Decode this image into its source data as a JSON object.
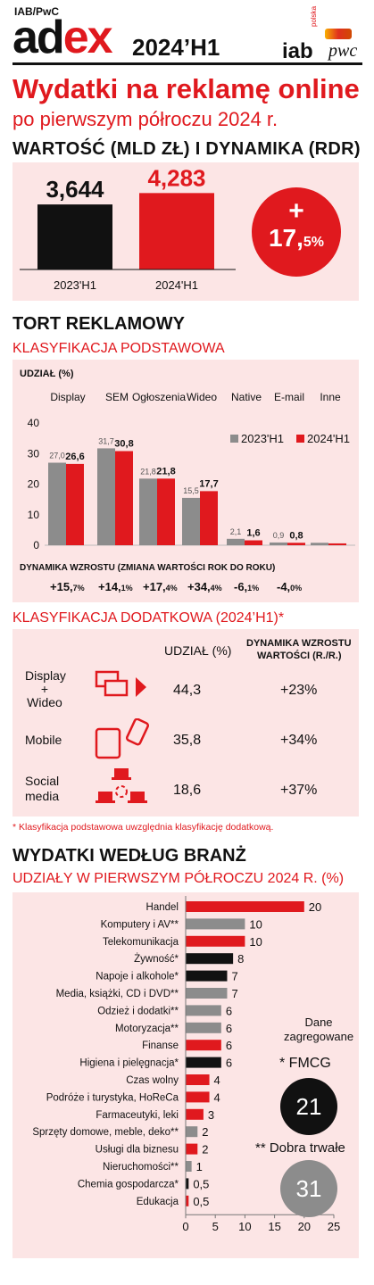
{
  "header": {
    "publisher": "IAB/PwC",
    "logo_ad": "ad",
    "logo_ex": "ex",
    "edition": "2024’H1",
    "logo_iab": "iab",
    "logo_iab_sub": "polska",
    "logo_pwc": "pwc"
  },
  "title_line1": "Wydatki na reklamę online",
  "title_line2": "po pierwszym półroczu 2024 r.",
  "value_section": {
    "title": "WARTOŚĆ (MLD ZŁ) I DYNAMIKA (RDR)",
    "growth_plus": "+",
    "growth_value": "17,",
    "growth_sup": "5%"
  },
  "pie_section": {
    "title": "TORT REKLAMOWY",
    "subtitle": "KLASYFIKACJA PODSTAWOWA",
    "share_label": "UDZIAŁ (%)",
    "dynamics_title": "DYNAMIKA WZROSTU (ZMIANA WARTOŚCI ROK DO ROKU)",
    "dynamics": [
      {
        "int": "+15,",
        "dec": "7%"
      },
      {
        "int": "+14,",
        "dec": "1%"
      },
      {
        "int": "+17,",
        "dec": "4%"
      },
      {
        "int": "+34,",
        "dec": "4%"
      },
      {
        "int": "-6,",
        "dec": "1%"
      },
      {
        "int": "-4,",
        "dec": "0%"
      }
    ]
  },
  "extra_section": {
    "subtitle": "KLASYFIKACJA DODATKOWA (2024’H1)*",
    "col_share": "UDZIAŁ (%)",
    "col_dyn_1": "DYNAMIKA WZROSTU",
    "col_dyn_2": "WARTOŚCI (R./R.)",
    "rows": [
      {
        "name1": "Display",
        "name2": "+",
        "name3": "Wideo",
        "share": "44,3",
        "dyn": "+23%"
      },
      {
        "name1": "Mobile",
        "name2": "",
        "name3": "",
        "share": "35,8",
        "dyn": "+34%"
      },
      {
        "name1": "Social",
        "name2": "media",
        "name3": "",
        "share": "18,6",
        "dyn": "+37%"
      }
    ],
    "footnote": "* Klasyfikacja podstawowa uwzględnia klasyfikację dodatkową."
  },
  "industry_section": {
    "title": "WYDATKI WEDŁUG BRANŻ",
    "subtitle": "UDZIAŁY W PIERWSZYM PÓŁROCZU 2024 R. (%)",
    "aggregated_1": "Dane",
    "aggregated_2": "zagregowane",
    "fmcg_label": "* FMCG",
    "fmcg_value": "21",
    "durable_label": "** Dobra trwałe",
    "durable_value": "31"
  },
  "colors": {
    "red": "#e0191e",
    "grey": "#8c8c8c",
    "black": "#111111",
    "pink": "#fce5e5"
  },
  "chart_data": [
    {
      "type": "bar",
      "categories": [
        "2023'H1",
        "2024'H1"
      ],
      "values": [
        3.644,
        4.283
      ],
      "value_labels": [
        "3,644",
        "4,283"
      ],
      "colors": [
        "#111111",
        "#e0191e"
      ],
      "ylim": [
        0,
        5
      ]
    },
    {
      "type": "bar",
      "categories": [
        "Display",
        "SEM",
        "Ogłoszenia",
        "Wideo",
        "Native",
        "E-mail",
        "Inne"
      ],
      "series": [
        {
          "name": "2023'H1",
          "values": [
            27.0,
            31.7,
            21.8,
            15.5,
            2.1,
            0.9,
            0.8
          ],
          "labels": [
            "27,0",
            "31,7",
            "21,8",
            "15,5",
            "2,1",
            "0,9",
            ""
          ],
          "color": "#8c8c8c"
        },
        {
          "name": "2024'H1",
          "values": [
            26.6,
            30.8,
            21.8,
            17.7,
            1.6,
            0.8,
            0.6
          ],
          "labels": [
            "26,6",
            "30,8",
            "21,8",
            "17,7",
            "1,6",
            "0,8",
            ""
          ],
          "color": "#e0191e"
        }
      ],
      "yticks": [
        "0",
        "10",
        "20",
        "30",
        "40"
      ],
      "ylim": [
        0,
        40
      ],
      "legend": "top-right"
    },
    {
      "type": "bar",
      "orientation": "horizontal",
      "categories": [
        "Handel",
        "Komputery i AV**",
        "Telekomunikacja",
        "Żywność*",
        "Napoje i alkohole*",
        "Media, książki, CD i DVD**",
        "Odzież i dodatki**",
        "Motoryzacja**",
        "Finanse",
        "Higiena i pielęgnacja*",
        "Czas wolny",
        "Podróże i turystyka, HoReCa",
        "Farmaceutyki, leki",
        "Sprzęty domowe, meble, deko**",
        "Usługi dla biznesu",
        "Nieruchomości**",
        "Chemia gospodarcza*",
        "Edukacja"
      ],
      "values": [
        20,
        10,
        10,
        8,
        7,
        7,
        6,
        6,
        6,
        6,
        4,
        4,
        3,
        2,
        2,
        1,
        0.5,
        0.5
      ],
      "value_labels": [
        "20",
        "10",
        "10",
        "8",
        "7",
        "7",
        "6",
        "6",
        "6",
        "6",
        "4",
        "4",
        "3",
        "2",
        "2",
        "1",
        "0,5",
        "0,5"
      ],
      "colors": [
        "#e0191e",
        "#8c8c8c",
        "#e0191e",
        "#111111",
        "#111111",
        "#8c8c8c",
        "#8c8c8c",
        "#8c8c8c",
        "#e0191e",
        "#111111",
        "#e0191e",
        "#e0191e",
        "#e0191e",
        "#8c8c8c",
        "#e0191e",
        "#8c8c8c",
        "#111111",
        "#e0191e"
      ],
      "xticks": [
        "0",
        "5",
        "10",
        "15",
        "20",
        "25"
      ],
      "xlim": [
        0,
        25
      ]
    }
  ]
}
